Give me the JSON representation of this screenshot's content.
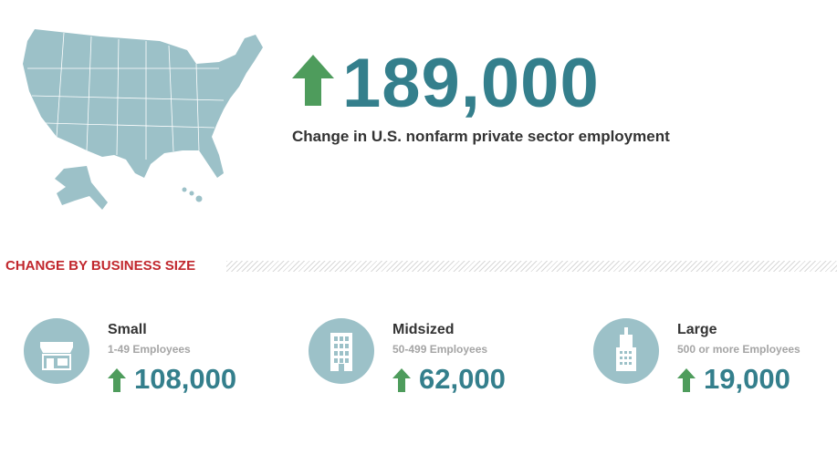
{
  "headline": {
    "value": "189,000",
    "caption": "Change in U.S. nonfarm private sector employment"
  },
  "section": {
    "title": "CHANGE BY BUSINESS SIZE"
  },
  "sizes": [
    {
      "name": "Small",
      "range": "1-49 Employees",
      "value": "108,000"
    },
    {
      "name": "Midsized",
      "range": "50-499 Employees",
      "value": "62,000"
    },
    {
      "name": "Large",
      "range": "500 or more Employees",
      "value": "19,000"
    }
  ]
}
